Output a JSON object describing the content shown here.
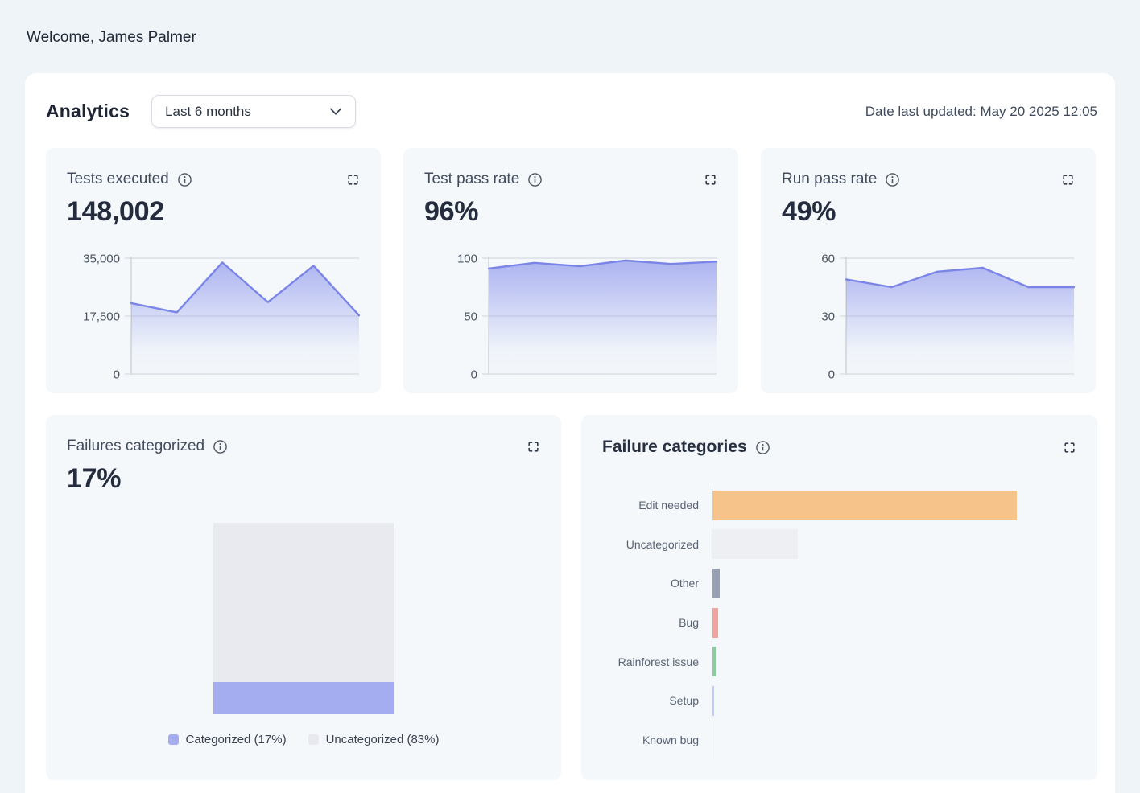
{
  "page": {
    "welcome": "Welcome, James Palmer"
  },
  "panel": {
    "title": "Analytics",
    "range_selector": {
      "value": "Last 6 months"
    },
    "last_updated": "Date last updated: May 20 2025 12:05"
  },
  "colors": {
    "accent_line": "#7b85e8",
    "accent_fill": "rgba(124,134,233,0.62)",
    "gridline": "#d8dce1",
    "axis_line": "#ccd2d8",
    "tick_text": "#4b5462",
    "categorized_purple": "#a3adf0",
    "uncategorized_gray": "#e8eaef"
  },
  "icons": {
    "info-icon": "circled letter i (tooltip trigger)",
    "fullscreen-icon": "four corner brackets (expand)",
    "chevron-down-icon": "downward chevron"
  },
  "kpi_cards": [
    {
      "title": "Tests executed",
      "value": "148,002",
      "chart_data": {
        "type": "area",
        "ymax": 35000,
        "ytick_labels": [
          "35,000",
          "17,500",
          "0"
        ],
        "values": [
          21400,
          18600,
          33700,
          21700,
          32700,
          17700
        ]
      }
    },
    {
      "title": "Test pass rate",
      "value": "96%",
      "chart_data": {
        "type": "area",
        "ymax": 100,
        "ytick_labels": [
          "100",
          "50",
          "0"
        ],
        "values": [
          91,
          96,
          93,
          98,
          95,
          97
        ]
      }
    },
    {
      "title": "Run pass rate",
      "value": "49%",
      "chart_data": {
        "type": "area",
        "ymax": 60,
        "ytick_labels": [
          "60",
          "30",
          "0"
        ],
        "values": [
          49,
          45,
          53,
          55,
          45,
          45
        ]
      }
    }
  ],
  "failures_categorized": {
    "title": "Failures categorized",
    "value": "17%",
    "chart_data": {
      "type": "stacked-bar",
      "segments": [
        {
          "label": "Categorized (17%)",
          "percent": 17,
          "color": "#a3adf0"
        },
        {
          "label": "Uncategorized (83%)",
          "percent": 83,
          "color": "#e8eaef"
        }
      ]
    },
    "legend": [
      {
        "label": "Categorized (17%)",
        "color": "#a3adf0"
      },
      {
        "label": "Uncategorized (83%)",
        "color": "#e7e9ee"
      }
    ]
  },
  "failure_categories": {
    "title": "Failure categories",
    "chart_data": {
      "type": "bar",
      "orientation": "horizontal",
      "categories": [
        "Edit needed",
        "Uncategorized",
        "Other",
        "Bug",
        "Rainforest issue",
        "Setup",
        "Known bug"
      ],
      "values": [
        100,
        28,
        2.4,
        1.9,
        1.1,
        0.5,
        0
      ],
      "xmax": 120,
      "colors": [
        "#f6c48a",
        "#edeff3",
        "#98a1b3",
        "#f0a49b",
        "#8ecb9e",
        "#c4cbf2",
        "#c4cbf2"
      ]
    }
  }
}
